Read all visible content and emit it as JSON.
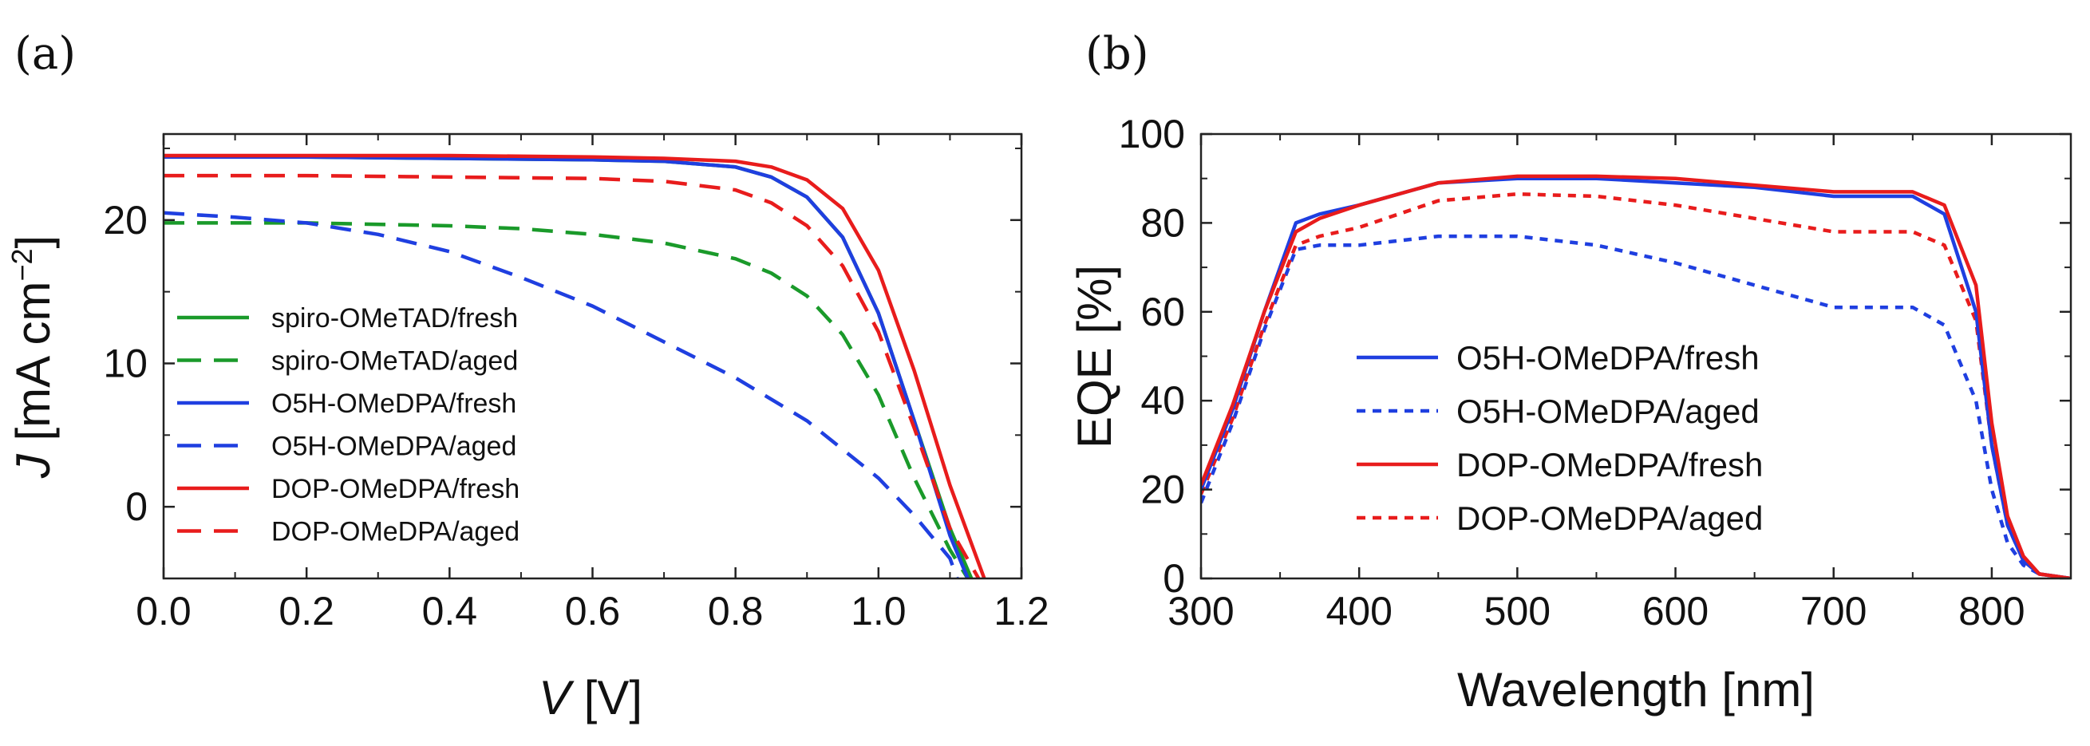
{
  "panels": {
    "a_label": "(a)",
    "b_label": "(b)"
  },
  "colors": {
    "green": "#1a9a2a",
    "blue": "#1f3fe0",
    "red": "#e81c1c"
  },
  "chart_data": [
    {
      "panel": "a",
      "type": "line",
      "title": "",
      "xlabel_italic": "V",
      "xlabel_unit": " [V]",
      "ylabel_italic": "J",
      "ylabel_unit": " [mA cm",
      "ylabel_sup": "−2",
      "ylabel_close": "]",
      "xlim": [
        0.0,
        1.2
      ],
      "ylim": [
        -5,
        26
      ],
      "xticks": [
        "0.0",
        "0.2",
        "0.4",
        "0.6",
        "0.8",
        "1.0",
        "1.2"
      ],
      "yticks": [
        "0",
        "10",
        "20"
      ],
      "series": [
        {
          "name": "spiro-OMeTAD/fresh",
          "color": "#1a9a2a",
          "style": "solid",
          "x": [
            0.0,
            0.2,
            0.4,
            0.6,
            0.7,
            0.8,
            0.85,
            0.9,
            0.95,
            1.0,
            1.05,
            1.1,
            1.13
          ],
          "y": [
            24.4,
            24.4,
            24.3,
            24.2,
            24.1,
            23.7,
            23.0,
            21.6,
            18.8,
            13.5,
            6.0,
            -1.5,
            -5
          ]
        },
        {
          "name": "spiro-OMeTAD/aged",
          "color": "#1a9a2a",
          "style": "dash",
          "x": [
            0.0,
            0.2,
            0.4,
            0.5,
            0.6,
            0.7,
            0.8,
            0.85,
            0.9,
            0.95,
            1.0,
            1.05,
            1.1,
            1.125
          ],
          "y": [
            19.8,
            19.8,
            19.6,
            19.4,
            19.0,
            18.4,
            17.3,
            16.3,
            14.7,
            12.0,
            7.8,
            2.0,
            -3.0,
            -5
          ]
        },
        {
          "name": "O5H-OMeDPA/fresh",
          "color": "#1f3fe0",
          "style": "solid",
          "x": [
            0.0,
            0.2,
            0.4,
            0.6,
            0.7,
            0.8,
            0.85,
            0.9,
            0.95,
            1.0,
            1.05,
            1.1,
            1.125
          ],
          "y": [
            24.4,
            24.4,
            24.3,
            24.2,
            24.1,
            23.7,
            23.0,
            21.6,
            18.8,
            13.5,
            6.0,
            -2.0,
            -5
          ]
        },
        {
          "name": "O5H-OMeDPA/aged",
          "color": "#1f3fe0",
          "style": "dash",
          "x": [
            0.0,
            0.1,
            0.2,
            0.3,
            0.4,
            0.5,
            0.6,
            0.7,
            0.8,
            0.9,
            1.0,
            1.05,
            1.1,
            1.11
          ],
          "y": [
            20.5,
            20.2,
            19.8,
            19.0,
            17.8,
            16.0,
            14.0,
            11.5,
            9.0,
            6.0,
            2.0,
            -0.6,
            -3.6,
            -5
          ]
        },
        {
          "name": "DOP-OMeDPA/fresh",
          "color": "#e81c1c",
          "style": "solid",
          "x": [
            0.0,
            0.2,
            0.4,
            0.6,
            0.7,
            0.8,
            0.85,
            0.9,
            0.95,
            1.0,
            1.05,
            1.1,
            1.148
          ],
          "y": [
            24.5,
            24.5,
            24.5,
            24.4,
            24.3,
            24.1,
            23.7,
            22.8,
            20.8,
            16.5,
            9.5,
            1.5,
            -5
          ]
        },
        {
          "name": "DOP-OMeDPA/aged",
          "color": "#e81c1c",
          "style": "dash",
          "x": [
            0.0,
            0.2,
            0.4,
            0.6,
            0.7,
            0.8,
            0.85,
            0.9,
            0.95,
            1.0,
            1.05,
            1.1,
            1.14
          ],
          "y": [
            23.1,
            23.1,
            23.0,
            22.9,
            22.7,
            22.1,
            21.2,
            19.6,
            16.8,
            12.2,
            5.5,
            -1.5,
            -5
          ]
        }
      ],
      "legend_order": [
        "spiro-OMeTAD/fresh",
        "spiro-OMeTAD/aged",
        "O5H-OMeDPA/fresh",
        "O5H-OMeDPA/aged",
        "DOP-OMeDPA/fresh",
        "DOP-OMeDPA/aged"
      ],
      "legend_position": "lower-left"
    },
    {
      "panel": "b",
      "type": "line",
      "title": "",
      "xlabel": "Wavelength [nm]",
      "ylabel": "EQE [%]",
      "xlim": [
        300,
        850
      ],
      "ylim": [
        0,
        100
      ],
      "xticks": [
        "300",
        "400",
        "500",
        "600",
        "700",
        "800"
      ],
      "yticks": [
        "0",
        "20",
        "40",
        "60",
        "80",
        "100"
      ],
      "series": [
        {
          "name": "O5H-OMeDPA/fresh",
          "color": "#1f3fe0",
          "style": "solid",
          "x": [
            300,
            320,
            340,
            360,
            375,
            400,
            450,
            500,
            550,
            600,
            650,
            700,
            750,
            770,
            790,
            800,
            810,
            820,
            830,
            850
          ],
          "y": [
            20,
            38,
            60,
            80,
            82,
            84,
            89,
            90,
            90,
            89,
            88,
            86,
            86,
            82,
            60,
            30,
            12,
            4,
            1,
            0
          ]
        },
        {
          "name": "O5H-OMeDPA/aged",
          "color": "#1f3fe0",
          "style": "dot",
          "x": [
            300,
            320,
            340,
            360,
            375,
            400,
            450,
            500,
            550,
            600,
            650,
            700,
            750,
            770,
            790,
            800,
            810,
            820,
            830,
            850
          ],
          "y": [
            17,
            35,
            56,
            74,
            75,
            75,
            77,
            77,
            75,
            71,
            66,
            61,
            61,
            57,
            40,
            20,
            8,
            3,
            1,
            0
          ]
        },
        {
          "name": "DOP-OMeDPA/fresh",
          "color": "#e81c1c",
          "style": "solid",
          "x": [
            300,
            320,
            340,
            360,
            375,
            400,
            450,
            500,
            550,
            600,
            650,
            700,
            750,
            770,
            790,
            800,
            810,
            820,
            830,
            850
          ],
          "y": [
            21,
            39,
            60,
            78,
            81,
            84,
            89,
            90.5,
            90.5,
            90,
            88.5,
            87,
            87,
            84,
            66,
            35,
            14,
            5,
            1,
            0
          ]
        },
        {
          "name": "DOP-OMeDPA/aged",
          "color": "#e81c1c",
          "style": "dot",
          "x": [
            300,
            320,
            340,
            360,
            375,
            400,
            450,
            500,
            550,
            600,
            650,
            700,
            750,
            770,
            790,
            800,
            810,
            820,
            830,
            850
          ],
          "y": [
            19,
            36,
            57,
            75,
            77,
            79,
            85,
            86.5,
            86,
            84,
            81,
            78,
            78,
            75,
            58,
            30,
            12,
            4,
            1,
            0
          ]
        }
      ],
      "legend_order": [
        "O5H-OMeDPA/fresh",
        "O5H-OMeDPA/aged",
        "DOP-OMeDPA/fresh",
        "DOP-OMeDPA/aged"
      ],
      "legend_position": "lower-center"
    }
  ]
}
